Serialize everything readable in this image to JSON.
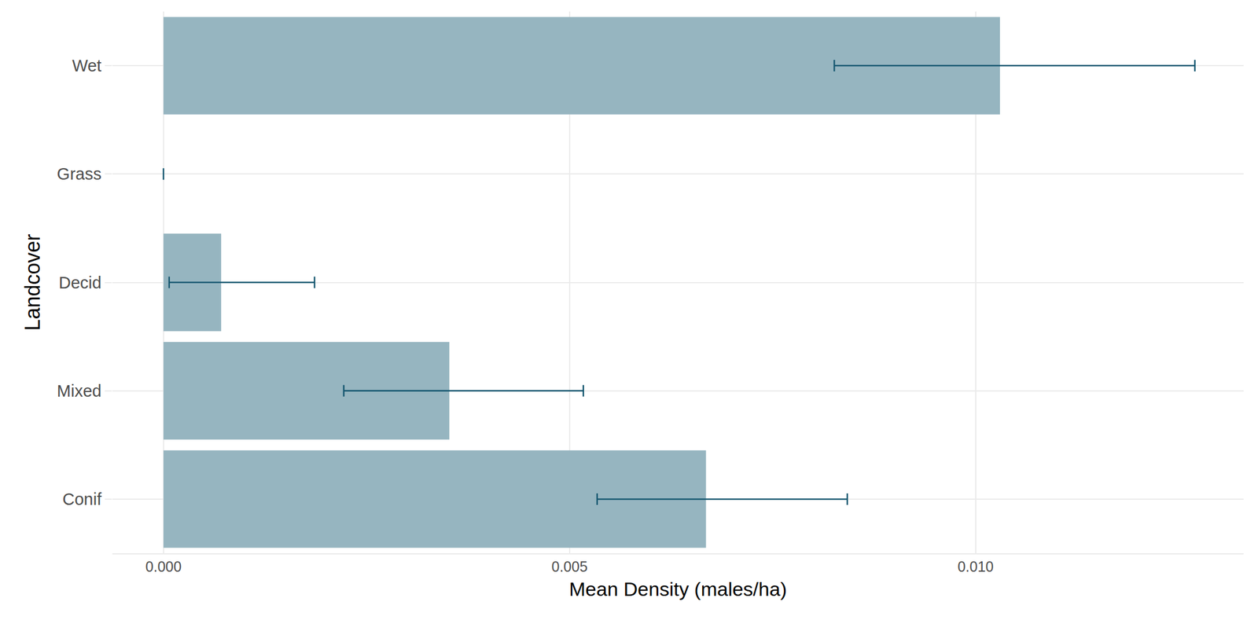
{
  "chart_data": {
    "type": "bar",
    "orientation": "horizontal",
    "categories": [
      "Conif",
      "Mixed",
      "Decid",
      "Grass",
      "Wet"
    ],
    "values": [
      0.00668,
      0.00352,
      0.00071,
      0,
      0.0103
    ],
    "error_low": [
      0.00534,
      0.00222,
      7e-05,
      0,
      0.00826
    ],
    "error_high": [
      0.00842,
      0.00517,
      0.00186,
      0,
      0.0127
    ],
    "color": "#96b5c0",
    "error_color": "#14566f",
    "x_label": "Mean Density (males/ha)",
    "y_label": "Landcover",
    "xlim": [
      -0.00063,
      0.0133
    ],
    "xticks": [
      {
        "value": 0,
        "label": "0.000"
      },
      {
        "value": 0.005,
        "label": "0.005"
      },
      {
        "value": 0.01,
        "label": "0.010"
      }
    ],
    "grid": true
  }
}
